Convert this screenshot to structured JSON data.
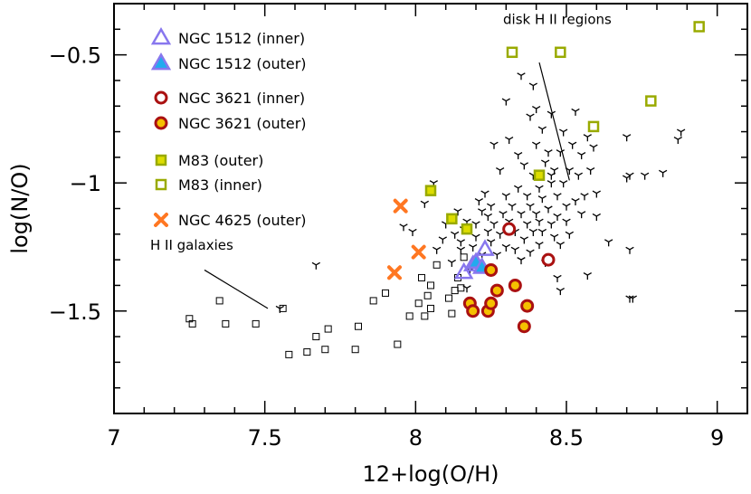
{
  "chart_data": {
    "type": "scatter",
    "xlabel": "12+log(O/H)",
    "ylabel": "log(N/O)",
    "xlim": [
      7.0,
      9.1
    ],
    "ylim": [
      -1.9,
      -0.3
    ],
    "x_ticks": [
      {
        "value": 7.0,
        "label": "7"
      },
      {
        "value": 7.5,
        "label": "7.5"
      },
      {
        "value": 8.0,
        "label": "8"
      },
      {
        "value": 8.5,
        "label": "8.5"
      },
      {
        "value": 9.0,
        "label": "9"
      }
    ],
    "y_ticks": [
      {
        "value": -0.5,
        "label": "−0.5"
      },
      {
        "value": -1.0,
        "label": "−1"
      },
      {
        "value": -1.5,
        "label": "−1.5"
      }
    ],
    "annotations": [
      {
        "text": "disk H II regions",
        "x": 8.29,
        "y": -0.38,
        "line": [
          8.41,
          -0.53,
          8.51,
          -0.99
        ]
      },
      {
        "text": "H II galaxies",
        "x": 7.12,
        "y": -1.26,
        "line": [
          7.3,
          -1.34,
          7.51,
          -1.49
        ]
      }
    ],
    "series": [
      {
        "name": "NGC 1512 (inner)",
        "marker": "triangle-open",
        "color": "#8877ee",
        "points": [
          [
            8.16,
            -1.35
          ],
          [
            8.19,
            -1.32
          ],
          [
            8.23,
            -1.26
          ]
        ]
      },
      {
        "name": "NGC 1512 (outer)",
        "marker": "triangle-filled",
        "color": "#8877ee",
        "fill": "#22aaee",
        "points": [
          [
            8.2,
            -1.31
          ],
          [
            8.22,
            -1.33
          ]
        ]
      },
      {
        "name": "NGC 3621 (inner)",
        "marker": "circle-open",
        "color": "#aa1111",
        "points": [
          [
            8.31,
            -1.18
          ],
          [
            8.44,
            -1.3
          ]
        ]
      },
      {
        "name": "NGC 3621 (outer)",
        "marker": "circle-filled",
        "color": "#aa1111",
        "fill": "#f5c000",
        "points": [
          [
            8.18,
            -1.47
          ],
          [
            8.19,
            -1.5
          ],
          [
            8.24,
            -1.5
          ],
          [
            8.25,
            -1.47
          ],
          [
            8.25,
            -1.34
          ],
          [
            8.27,
            -1.42
          ],
          [
            8.33,
            -1.4
          ],
          [
            8.37,
            -1.48
          ],
          [
            8.36,
            -1.56
          ]
        ]
      },
      {
        "name": "M83 (outer)",
        "marker": "square-filled",
        "color": "#99aa00",
        "fill": "#dddd00",
        "points": [
          [
            8.05,
            -1.03
          ],
          [
            8.12,
            -1.14
          ],
          [
            8.17,
            -1.18
          ],
          [
            8.41,
            -0.97
          ]
        ]
      },
      {
        "name": "M83 (inner)",
        "marker": "square-open",
        "color": "#99aa00",
        "points": [
          [
            8.32,
            -0.49
          ],
          [
            8.48,
            -0.49
          ],
          [
            8.59,
            -0.78
          ],
          [
            8.78,
            -0.68
          ],
          [
            8.94,
            -0.39
          ]
        ]
      },
      {
        "name": "NGC 4625 (outer)",
        "marker": "cross-star",
        "color": "#ff7722",
        "points": [
          [
            7.95,
            -1.09
          ],
          [
            8.01,
            -1.27
          ],
          [
            7.93,
            -1.35
          ]
        ]
      },
      {
        "name": "",
        "marker": "square-open-small",
        "color": "#000000",
        "points": [
          [
            7.25,
            -1.53
          ],
          [
            7.26,
            -1.55
          ],
          [
            7.35,
            -1.46
          ],
          [
            7.37,
            -1.55
          ],
          [
            7.47,
            -1.55
          ],
          [
            7.56,
            -1.49
          ],
          [
            7.58,
            -1.67
          ],
          [
            7.64,
            -1.66
          ],
          [
            7.67,
            -1.6
          ],
          [
            7.7,
            -1.65
          ],
          [
            7.71,
            -1.57
          ],
          [
            7.8,
            -1.65
          ],
          [
            7.81,
            -1.56
          ],
          [
            7.86,
            -1.46
          ],
          [
            7.9,
            -1.43
          ],
          [
            7.94,
            -1.63
          ],
          [
            7.98,
            -1.52
          ],
          [
            8.01,
            -1.47
          ],
          [
            8.02,
            -1.37
          ],
          [
            8.03,
            -1.52
          ],
          [
            8.04,
            -1.44
          ],
          [
            8.05,
            -1.4
          ],
          [
            8.05,
            -1.49
          ],
          [
            8.07,
            -1.32
          ],
          [
            8.11,
            -1.45
          ],
          [
            8.12,
            -1.51
          ],
          [
            8.13,
            -1.42
          ],
          [
            8.14,
            -1.37
          ],
          [
            8.15,
            -1.41
          ],
          [
            8.16,
            -1.29
          ]
        ]
      },
      {
        "name": "",
        "marker": "tripod",
        "color": "#000000",
        "points": [
          [
            7.55,
            -1.49
          ],
          [
            7.67,
            -1.32
          ],
          [
            7.96,
            -1.17
          ],
          [
            7.99,
            -1.19
          ],
          [
            8.03,
            -1.08
          ],
          [
            8.06,
            -1.0
          ],
          [
            8.07,
            -1.26
          ],
          [
            8.09,
            -1.22
          ],
          [
            8.1,
            -1.16
          ],
          [
            8.12,
            -1.31
          ],
          [
            8.13,
            -1.2
          ],
          [
            8.14,
            -1.11
          ],
          [
            8.15,
            -1.26
          ],
          [
            8.15,
            -1.23
          ],
          [
            8.16,
            -1.18
          ],
          [
            8.17,
            -1.15
          ],
          [
            8.17,
            -1.41
          ],
          [
            8.18,
            -1.34
          ],
          [
            8.19,
            -1.25
          ],
          [
            8.2,
            -1.21
          ],
          [
            8.2,
            -1.16
          ],
          [
            8.21,
            -1.07
          ],
          [
            8.22,
            -1.11
          ],
          [
            8.22,
            -1.28
          ],
          [
            8.23,
            -1.04
          ],
          [
            8.24,
            -1.19
          ],
          [
            8.24,
            -1.13
          ],
          [
            8.25,
            -1.23
          ],
          [
            8.25,
            -1.09
          ],
          [
            8.26,
            -1.16
          ],
          [
            8.27,
            -1.28
          ],
          [
            8.28,
            -0.95
          ],
          [
            8.28,
            -1.2
          ],
          [
            8.29,
            -1.12
          ],
          [
            8.3,
            -1.05
          ],
          [
            8.3,
            -1.25
          ],
          [
            8.31,
            -0.83
          ],
          [
            8.31,
            -1.15
          ],
          [
            8.32,
            -1.09
          ],
          [
            8.33,
            -1.26
          ],
          [
            8.33,
            -1.19
          ],
          [
            8.34,
            -0.89
          ],
          [
            8.34,
            -1.02
          ],
          [
            8.35,
            -1.12
          ],
          [
            8.35,
            -1.3
          ],
          [
            8.36,
            -0.93
          ],
          [
            8.36,
            -1.22
          ],
          [
            8.37,
            -1.05
          ],
          [
            8.37,
            -1.16
          ],
          [
            8.38,
            -0.74
          ],
          [
            8.38,
            -1.09
          ],
          [
            8.38,
            -1.27
          ],
          [
            8.39,
            -0.97
          ],
          [
            8.39,
            -1.19
          ],
          [
            8.4,
            -0.85
          ],
          [
            8.4,
            -1.12
          ],
          [
            8.41,
            -1.02
          ],
          [
            8.41,
            -1.15
          ],
          [
            8.41,
            -1.24
          ],
          [
            8.42,
            -0.79
          ],
          [
            8.42,
            -1.06
          ],
          [
            8.42,
            -1.19
          ],
          [
            8.43,
            -0.92
          ],
          [
            8.43,
            -1.31
          ],
          [
            8.44,
            -0.88
          ],
          [
            8.44,
            -1.1
          ],
          [
            8.45,
            -0.73
          ],
          [
            8.45,
            -1.0
          ],
          [
            8.45,
            -1.16
          ],
          [
            8.46,
            -1.21
          ],
          [
            8.46,
            -0.95
          ],
          [
            8.47,
            -1.05
          ],
          [
            8.47,
            -1.13
          ],
          [
            8.48,
            -0.88
          ],
          [
            8.48,
            -1.24
          ],
          [
            8.49,
            -0.8
          ],
          [
            8.49,
            -1.0
          ],
          [
            8.5,
            -1.09
          ],
          [
            8.5,
            -1.15
          ],
          [
            8.51,
            -0.95
          ],
          [
            8.51,
            -1.2
          ],
          [
            8.52,
            -0.85
          ],
          [
            8.53,
            -0.72
          ],
          [
            8.53,
            -1.07
          ],
          [
            8.54,
            -0.97
          ],
          [
            8.55,
            -0.89
          ],
          [
            8.55,
            -1.12
          ],
          [
            8.56,
            -1.05
          ],
          [
            8.57,
            -0.82
          ],
          [
            8.58,
            -0.95
          ],
          [
            8.59,
            -0.86
          ],
          [
            8.6,
            -1.04
          ],
          [
            8.45,
            -0.97
          ],
          [
            8.39,
            -0.62
          ],
          [
            8.4,
            -0.71
          ],
          [
            8.35,
            -0.58
          ],
          [
            8.3,
            -0.68
          ],
          [
            8.26,
            -0.85
          ],
          [
            8.48,
            -1.42
          ],
          [
            8.57,
            -1.36
          ],
          [
            8.47,
            -1.37
          ],
          [
            8.6,
            -1.13
          ],
          [
            8.64,
            -1.23
          ],
          [
            8.7,
            -0.82
          ],
          [
            8.7,
            -0.98
          ],
          [
            8.71,
            -0.97
          ],
          [
            8.71,
            -1.26
          ],
          [
            8.71,
            -1.45
          ],
          [
            8.72,
            -1.45
          ],
          [
            8.76,
            -0.97
          ],
          [
            8.82,
            -0.96
          ],
          [
            8.87,
            -0.83
          ],
          [
            8.88,
            -0.8
          ]
        ]
      }
    ]
  }
}
